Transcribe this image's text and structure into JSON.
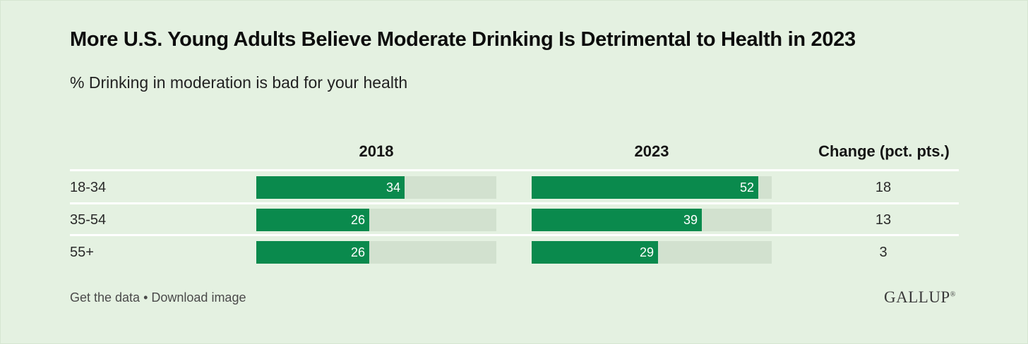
{
  "chart_data": {
    "type": "bar",
    "title": "More U.S. Young Adults Believe Moderate Drinking Is Detrimental to Health in 2023",
    "subtitle": "% Drinking in moderation is bad for your health",
    "categories": [
      "18-34",
      "35-54",
      "55+"
    ],
    "series": [
      {
        "name": "2018",
        "values": [
          34,
          26,
          26
        ]
      },
      {
        "name": "2023",
        "values": [
          52,
          39,
          29
        ]
      }
    ],
    "change_header": "Change (pct. pts.)",
    "change": [
      "18",
      "13",
      "3"
    ],
    "xlim": [
      0,
      100
    ],
    "colors": {
      "bar": "#0a8a4d",
      "track": "#d2e1cf",
      "background": "#e4f1e1"
    }
  },
  "footer": {
    "get_data": "Get the data",
    "separator": " • ",
    "download": "Download image"
  },
  "logo": {
    "text": "GALLUP",
    "mark": "®"
  }
}
